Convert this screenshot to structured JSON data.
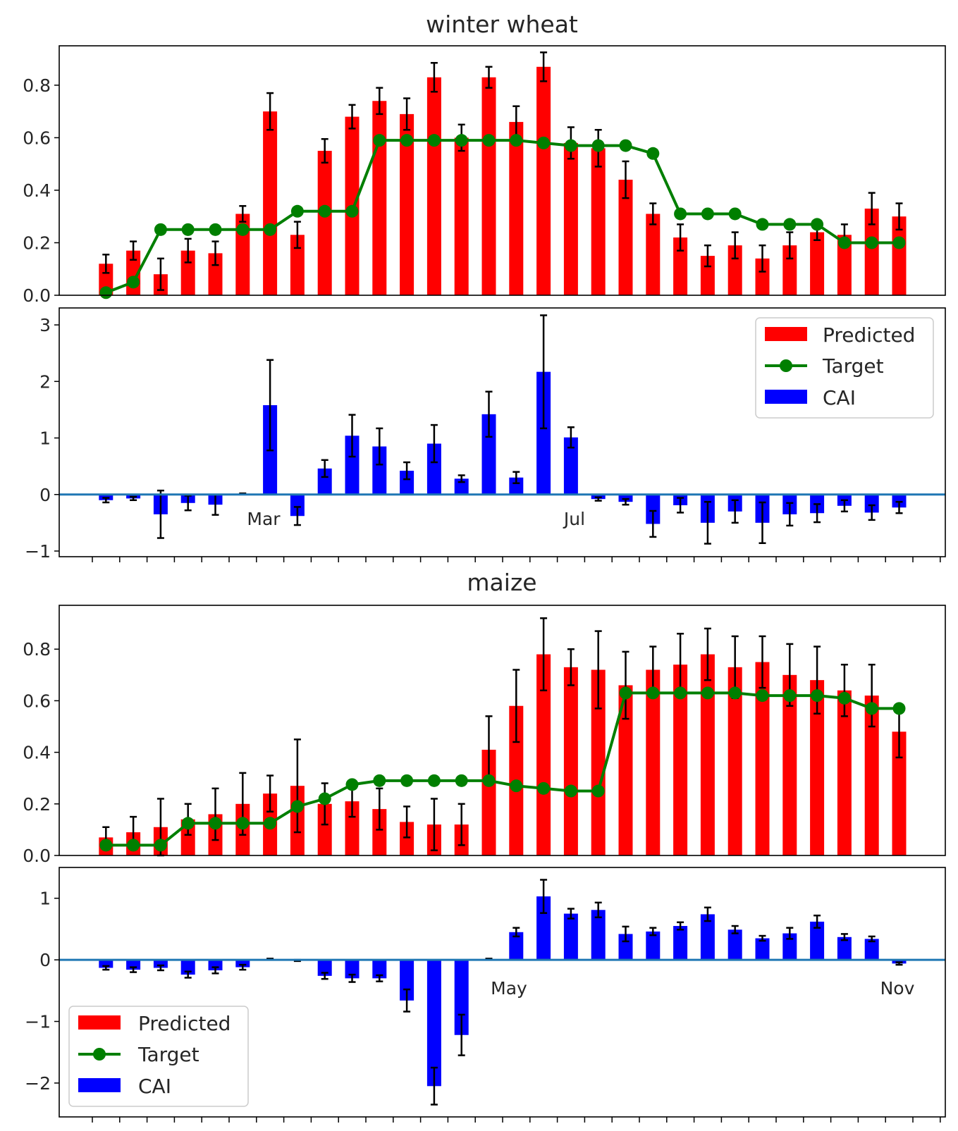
{
  "colors": {
    "predicted": "#ff0000",
    "target": "#007f00",
    "cai": "#0000ff",
    "zero_line": "#1f77b4",
    "error_bar": "#000000"
  },
  "chart_data": [
    {
      "type": "bar",
      "title": "winter wheat",
      "panel": "top",
      "ylim": [
        0,
        0.95
      ],
      "yticks": [
        "0.0",
        "0.2",
        "0.4",
        "0.6",
        "0.8"
      ],
      "ytick_values": [
        0,
        0.2,
        0.4,
        0.6,
        0.8
      ],
      "n": 30,
      "series": [
        {
          "name": "Predicted",
          "type": "bar",
          "values": [
            0.12,
            0.17,
            0.08,
            0.17,
            0.16,
            0.31,
            0.7,
            0.23,
            0.55,
            0.68,
            0.74,
            0.69,
            0.83,
            0.6,
            0.83,
            0.66,
            0.87,
            0.58,
            0.56,
            0.44,
            0.31,
            0.22,
            0.15,
            0.19,
            0.14,
            0.19,
            0.24,
            0.23,
            0.33,
            0.3
          ],
          "errors": [
            0.035,
            0.035,
            0.06,
            0.045,
            0.045,
            0.03,
            0.07,
            0.05,
            0.045,
            0.045,
            0.05,
            0.06,
            0.055,
            0.05,
            0.04,
            0.06,
            0.055,
            0.06,
            0.07,
            0.07,
            0.04,
            0.05,
            0.04,
            0.05,
            0.05,
            0.05,
            0.03,
            0.04,
            0.06,
            0.05
          ]
        },
        {
          "name": "Target",
          "type": "line",
          "values": [
            0.01,
            0.05,
            0.25,
            0.25,
            0.25,
            0.25,
            0.25,
            0.32,
            0.32,
            0.32,
            0.59,
            0.59,
            0.59,
            0.59,
            0.59,
            0.59,
            0.58,
            0.57,
            0.57,
            0.57,
            0.54,
            0.31,
            0.31,
            0.31,
            0.27,
            0.27,
            0.27,
            0.2,
            0.2,
            0.2
          ]
        }
      ]
    },
    {
      "type": "bar",
      "panel": "bottom",
      "ylim": [
        -1.1,
        3.3
      ],
      "yticks": [
        "−1",
        "0",
        "1",
        "2",
        "3"
      ],
      "ytick_values": [
        -1,
        0,
        1,
        2,
        3
      ],
      "n": 30,
      "annotations": [
        {
          "text": "Mar",
          "x_index": 6
        },
        {
          "text": "Jul",
          "x_index": 17
        }
      ],
      "legend": {
        "placement": "top-right",
        "entries": [
          "Predicted",
          "Target",
          "CAI"
        ]
      },
      "series": [
        {
          "name": "CAI",
          "type": "bar",
          "values": [
            -0.1,
            -0.07,
            -0.35,
            -0.15,
            -0.18,
            0.01,
            1.58,
            -0.38,
            0.46,
            1.04,
            0.85,
            0.42,
            0.9,
            0.28,
            1.42,
            0.3,
            2.17,
            1.01,
            -0.08,
            -0.13,
            -0.52,
            -0.19,
            -0.5,
            -0.3,
            -0.5,
            -0.35,
            -0.33,
            -0.2,
            -0.32,
            -0.23
          ],
          "errors": [
            0.04,
            0.03,
            0.42,
            0.13,
            0.18,
            0.01,
            0.8,
            0.16,
            0.15,
            0.37,
            0.32,
            0.15,
            0.33,
            0.06,
            0.4,
            0.1,
            1.0,
            0.18,
            0.03,
            0.05,
            0.23,
            0.13,
            0.37,
            0.2,
            0.36,
            0.2,
            0.16,
            0.1,
            0.13,
            0.1
          ]
        }
      ]
    },
    {
      "type": "bar",
      "title": "maize",
      "panel": "top",
      "ylim": [
        0,
        0.97
      ],
      "yticks": [
        "0.0",
        "0.2",
        "0.4",
        "0.6",
        "0.8"
      ],
      "ytick_values": [
        0,
        0.2,
        0.4,
        0.6,
        0.8
      ],
      "n": 30,
      "series": [
        {
          "name": "Predicted",
          "type": "bar",
          "values": [
            0.07,
            0.09,
            0.11,
            0.14,
            0.16,
            0.2,
            0.24,
            0.27,
            0.2,
            0.21,
            0.18,
            0.13,
            0.12,
            0.12,
            0.41,
            0.58,
            0.78,
            0.73,
            0.72,
            0.66,
            0.72,
            0.74,
            0.78,
            0.73,
            0.75,
            0.7,
            0.68,
            0.64,
            0.62,
            0.48
          ],
          "errors": [
            0.04,
            0.06,
            0.11,
            0.06,
            0.1,
            0.12,
            0.07,
            0.18,
            0.08,
            0.06,
            0.08,
            0.06,
            0.1,
            0.08,
            0.13,
            0.14,
            0.14,
            0.07,
            0.15,
            0.13,
            0.09,
            0.12,
            0.1,
            0.12,
            0.1,
            0.12,
            0.13,
            0.1,
            0.12,
            0.1
          ]
        },
        {
          "name": "Target",
          "type": "line",
          "values": [
            0.04,
            0.04,
            0.04,
            0.125,
            0.125,
            0.125,
            0.125,
            0.19,
            0.22,
            0.275,
            0.29,
            0.29,
            0.29,
            0.29,
            0.29,
            0.27,
            0.26,
            0.25,
            0.25,
            0.63,
            0.63,
            0.63,
            0.63,
            0.63,
            0.62,
            0.62,
            0.62,
            0.61,
            0.57,
            0.57
          ]
        }
      ]
    },
    {
      "type": "bar",
      "panel": "bottom",
      "ylim": [
        -2.55,
        1.5
      ],
      "yticks": [
        "−2",
        "−1",
        "0",
        "1"
      ],
      "ytick_values": [
        -2,
        -1,
        0,
        1
      ],
      "n": 30,
      "annotations": [
        {
          "text": "May",
          "x_index": 14.75
        },
        {
          "text": "Nov",
          "x_index": 29
        }
      ],
      "legend": {
        "placement": "lower-left",
        "entries": [
          "Predicted",
          "Target",
          "CAI"
        ]
      },
      "series": [
        {
          "name": "CAI",
          "type": "bar",
          "values": [
            -0.13,
            -0.16,
            -0.13,
            -0.24,
            -0.17,
            -0.12,
            0.01,
            -0.01,
            -0.26,
            -0.3,
            -0.3,
            -0.66,
            -2.05,
            -1.22,
            0.01,
            0.45,
            1.03,
            0.75,
            0.81,
            0.42,
            0.46,
            0.55,
            0.74,
            0.49,
            0.35,
            0.43,
            0.62,
            0.37,
            0.34,
            -0.06
          ],
          "errors": [
            0.03,
            0.04,
            0.04,
            0.05,
            0.05,
            0.04,
            0.01,
            0.01,
            0.05,
            0.06,
            0.05,
            0.18,
            0.3,
            0.33,
            0.01,
            0.07,
            0.27,
            0.08,
            0.12,
            0.12,
            0.06,
            0.06,
            0.11,
            0.06,
            0.04,
            0.09,
            0.1,
            0.05,
            0.04,
            0.02
          ]
        }
      ]
    }
  ]
}
